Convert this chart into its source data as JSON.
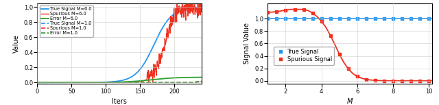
{
  "left_plot": {
    "xlabel": "Iters",
    "ylabel": "Value",
    "xlim": [
      0,
      240
    ],
    "ylim": [
      -0.02,
      1.05
    ],
    "xticks": [
      0,
      50,
      100,
      150,
      200
    ],
    "yticks": [
      0.0,
      0.2,
      0.4,
      0.6,
      0.8,
      1.0
    ],
    "legend": [
      {
        "label": "True Signal M=6.0",
        "color": "#2196f3",
        "linestyle": "solid"
      },
      {
        "label": "Spurious M=6.0",
        "color": "#f03020",
        "linestyle": "solid"
      },
      {
        "label": "Error M=6.0",
        "color": "#2ca02c",
        "linestyle": "solid"
      },
      {
        "label": "True Signal M=1.0",
        "color": "#2196f3",
        "linestyle": "dashed"
      },
      {
        "label": "Spurious M=1.0",
        "color": "#f03020",
        "linestyle": "dashed"
      },
      {
        "label": "Error M=1.0",
        "color": "#2ca02c",
        "linestyle": "dashed"
      }
    ]
  },
  "right_plot": {
    "xlabel": "M",
    "ylabel": "Signal Value",
    "xlim": [
      1.0,
      10.2
    ],
    "ylim": [
      -0.05,
      1.25
    ],
    "xticks": [
      2,
      4,
      6,
      8,
      10
    ],
    "yticks": [
      0.0,
      0.2,
      0.4,
      0.6,
      0.8,
      1.0
    ],
    "true_signal_color": "#2196f3",
    "spurious_signal_color": "#f03020"
  },
  "colors": {
    "blue": "#2196f3",
    "red": "#f03020",
    "green": "#2ca02c"
  }
}
